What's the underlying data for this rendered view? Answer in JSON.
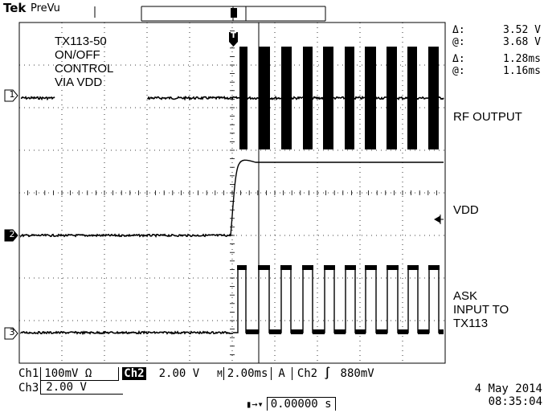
{
  "header": {
    "brand": "Tek",
    "mode": "PreVu"
  },
  "annotation": [
    "TX113-50",
    "ON/OFF",
    "CONTROL",
    "VIA VDD"
  ],
  "labels": {
    "rf_output": "RF OUTPUT",
    "vdd": "VDD",
    "ask": [
      "ASK",
      "INPUT TO",
      "TX113"
    ]
  },
  "measurements": {
    "delta_v_sym": "Δ:",
    "delta_v": "3.52 V",
    "at_v_sym": "@:",
    "at_v": "3.68 V",
    "delta_t_sym": "Δ:",
    "delta_t": "1.28ms",
    "at_t_sym": "@:",
    "at_t": "1.16ms"
  },
  "channel_markers": {
    "ch1": "1",
    "ch2": "2",
    "ch3": "3",
    "trigger": "T"
  },
  "status": {
    "ch1": "Ch1",
    "ch1_scale": "100mV Ω",
    "ch2": "Ch2",
    "ch2_scale": "2.00 V",
    "timebase_prefix": "M",
    "timebase": "2.00ms",
    "trigger_mode": "A",
    "trigger_src": "Ch2",
    "trigger_slope": "∫",
    "trigger_level": "880mV",
    "ch3": "Ch3",
    "ch3_scale": "2.00 V",
    "position": "0.00000 s",
    "date": "4 May 2014",
    "time": "08:35:04"
  },
  "colors": {
    "trace": "#000000",
    "background": "#ffffff",
    "grid": "#000000"
  }
}
